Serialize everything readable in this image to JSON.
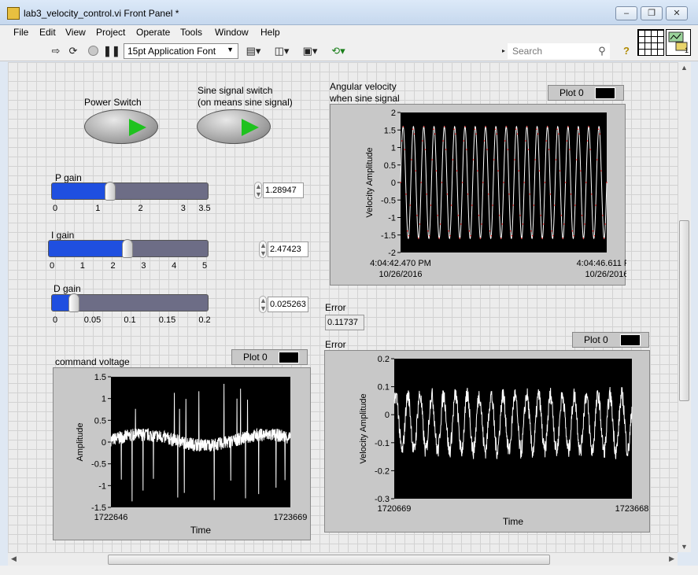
{
  "window": {
    "title": "lab3_velocity_control.vi Front Panel *",
    "controls": [
      "minimize",
      "restore",
      "close"
    ]
  },
  "menu": [
    "File",
    "Edit",
    "View",
    "Project",
    "Operate",
    "Tools",
    "Window",
    "Help"
  ],
  "toolbar": {
    "font": "15pt Application Font",
    "search_placeholder": "Search",
    "icons": [
      "run-arrow-icon",
      "run-continuously-icon",
      "abort-icon",
      "pause-icon",
      "align-icon",
      "distribute-icon",
      "resize-icon",
      "reorder-icon",
      "help-icon"
    ],
    "vi_icon_label": "1"
  },
  "controls": {
    "power_switch": {
      "label": "Power Switch",
      "state": "on"
    },
    "sine_switch": {
      "label": "Sine signal switch",
      "label_line2": "(on means sine signal)",
      "state": "on"
    },
    "p_gain": {
      "label": "P gain",
      "value": "1.28947",
      "value_num": 1.28947,
      "min": 0,
      "max": 3.5,
      "ticks": [
        "0",
        "1",
        "2",
        "3",
        "3.5"
      ],
      "tick_values": [
        0,
        1,
        2,
        3,
        3.5
      ]
    },
    "i_gain": {
      "label": "I gain",
      "value": "2.47423",
      "value_num": 2.47423,
      "min": 0,
      "max": 5,
      "ticks": [
        "0",
        "1",
        "2",
        "3",
        "4",
        "5"
      ],
      "tick_values": [
        0,
        1,
        2,
        3,
        4,
        5
      ]
    },
    "d_gain": {
      "label": "D gain",
      "value": "0.025263",
      "value_num": 0.025263,
      "min": 0,
      "max": 0.2,
      "ticks": [
        "0",
        "0.05",
        "0.1",
        "0.15",
        "0.2"
      ],
      "tick_values": [
        0,
        0.05,
        0.1,
        0.15,
        0.2
      ]
    },
    "error_indicator": {
      "label": "Error",
      "value": "0.11737"
    }
  },
  "chart_data": [
    {
      "type": "line",
      "title": "Angular velocity",
      "title_line2": "when sine signal",
      "legend": "Plot 0",
      "xlabel": "",
      "ylabel": "Velocity  Amplitude",
      "ylim": [
        -2,
        2
      ],
      "y_ticks": [
        "2",
        "1.5",
        "1",
        "0.5",
        "0",
        "-0.5",
        "-1",
        "-1.5",
        "-2"
      ],
      "x_start": "4:04:42.470 PM",
      "x_start_date": "10/26/2016",
      "x_end": "4:04:46.611 PM",
      "x_end_date": "10/26/2016",
      "series": [
        {
          "name": "Plot 0",
          "shape": "sine",
          "color": "#ffffff",
          "amplitude": 1.6,
          "cycles": 20
        },
        {
          "shape": "sine-markers",
          "color": "#ff3030",
          "amplitude": 1.6,
          "cycles": 20
        }
      ]
    },
    {
      "type": "line",
      "title": "command  voltage",
      "legend": "Plot 0",
      "xlabel": "Time",
      "ylabel": "Amplitude",
      "ylim": [
        -1.5,
        1.5
      ],
      "y_ticks": [
        "1.5",
        "1",
        "0.5",
        "0",
        "-0.5",
        "-1",
        "-1.5"
      ],
      "x_range": [
        1722646,
        1723669
      ],
      "x_ticks": [
        "1722646",
        "1723669"
      ],
      "series": [
        {
          "name": "Plot 0",
          "shape": "noise",
          "color": "#ffffff",
          "baseline": 0.05,
          "noise": 0.15,
          "spikes": 18
        }
      ]
    },
    {
      "type": "line",
      "title": "Error",
      "legend": "Plot 0",
      "xlabel": "Time",
      "ylabel": "Velocity  Amplitude",
      "ylim": [
        -0.3,
        0.2
      ],
      "y_ticks": [
        "0.2",
        "0.1",
        "0",
        "-0.1",
        "-0.2",
        "-0.3"
      ],
      "x_range": [
        1720669,
        1723668
      ],
      "x_ticks": [
        "1720669",
        "1723668"
      ],
      "series": [
        {
          "name": "Plot 0",
          "shape": "noisy-sine",
          "color": "#ffffff",
          "amplitude": 0.1,
          "offset": -0.03,
          "cycles": 20
        }
      ]
    }
  ]
}
